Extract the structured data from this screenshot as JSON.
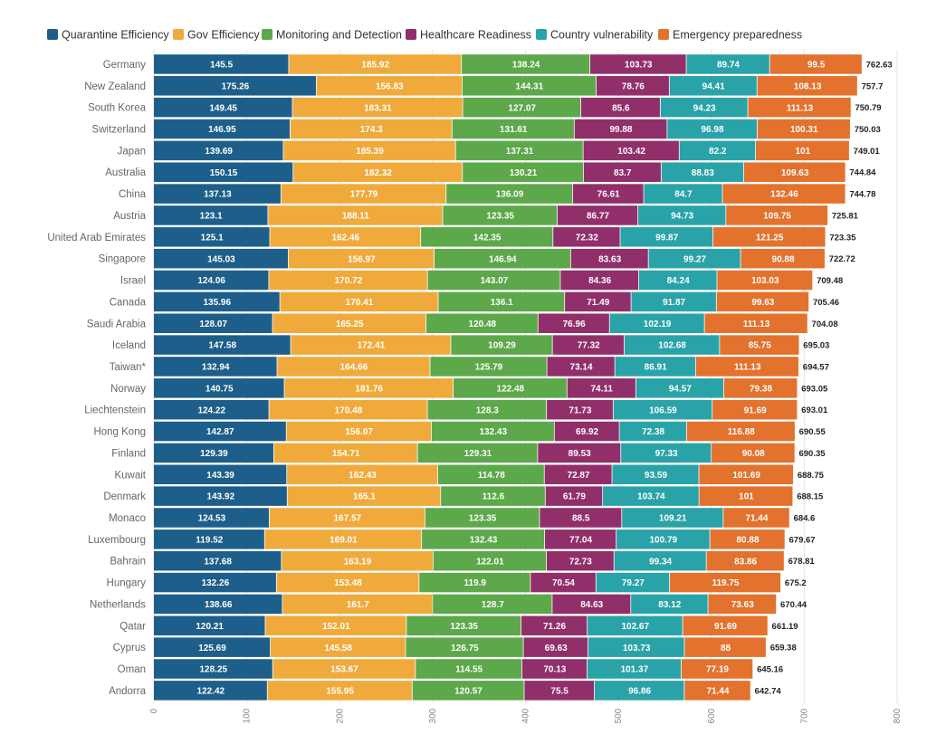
{
  "chart_data": {
    "type": "bar",
    "orientation": "horizontal",
    "stacked": true,
    "legend_position": "top",
    "grid": true,
    "xlim": [
      0,
      800
    ],
    "x_ticks": [
      "0",
      "100",
      "200",
      "300",
      "400",
      "500",
      "600",
      "700",
      "800"
    ],
    "categories": [
      "Germany",
      "New Zealand",
      "South Korea",
      "Switzerland",
      "Japan",
      "Australia",
      "China",
      "Austria",
      "United Arab Emirates",
      "Singapore",
      "Israel",
      "Canada",
      "Saudi Arabia",
      "Iceland",
      "Taiwan*",
      "Norway",
      "Liechtenstein",
      "Hong Kong",
      "Finland",
      "Kuwait",
      "Denmark",
      "Monaco",
      "Luxembourg",
      "Bahrain",
      "Hungary",
      "Netherlands",
      "Qatar",
      "Cyprus",
      "Oman",
      "Andorra"
    ],
    "series": [
      {
        "name": "Quarantine Efficiency",
        "color": "#1d5f8a",
        "values": [
          145.5,
          175.26,
          149.45,
          146.95,
          139.69,
          150.15,
          137.13,
          123.1,
          125.1,
          145.03,
          124.06,
          135.96,
          128.07,
          147.58,
          132.94,
          140.75,
          124.22,
          142.87,
          129.39,
          143.39,
          143.92,
          124.53,
          119.52,
          137.68,
          132.26,
          138.66,
          120.21,
          125.69,
          128.25,
          122.42
        ]
      },
      {
        "name": "Gov Efficiency",
        "color": "#f0aa3c",
        "values": [
          185.92,
          156.83,
          183.31,
          174.3,
          185.39,
          182.32,
          177.79,
          188.11,
          162.46,
          156.97,
          170.72,
          170.41,
          165.25,
          172.41,
          164.66,
          181.76,
          170.48,
          156.07,
          154.71,
          162.43,
          165.1,
          167.57,
          169.01,
          163.19,
          153.48,
          161.7,
          152.01,
          145.58,
          153.67,
          155.95
        ]
      },
      {
        "name": "Monitoring and Detection",
        "color": "#5ca84a",
        "values": [
          138.24,
          144.31,
          127.07,
          131.61,
          137.31,
          130.21,
          136.09,
          123.35,
          142.35,
          146.94,
          143.07,
          136.1,
          120.48,
          109.29,
          125.79,
          122.48,
          128.3,
          132.43,
          129.31,
          114.78,
          112.6,
          123.35,
          132.43,
          122.01,
          119.9,
          128.7,
          123.35,
          126.75,
          114.55,
          120.57
        ]
      },
      {
        "name": "Healthcare Readiness",
        "color": "#912f6a",
        "values": [
          103.73,
          78.76,
          85.6,
          99.88,
          103.42,
          83.7,
          76.61,
          86.77,
          72.32,
          83.63,
          84.36,
          71.49,
          76.96,
          77.32,
          73.14,
          74.11,
          71.73,
          69.92,
          89.53,
          72.87,
          61.79,
          88.5,
          77.04,
          72.73,
          70.54,
          84.63,
          71.26,
          69.63,
          70.13,
          75.5
        ]
      },
      {
        "name": "Country vulnerability",
        "color": "#2aa3a8",
        "values": [
          89.74,
          94.41,
          94.23,
          96.98,
          82.2,
          88.83,
          84.7,
          94.73,
          99.87,
          99.27,
          84.24,
          91.87,
          102.19,
          102.68,
          86.91,
          94.57,
          106.59,
          72.38,
          97.33,
          93.59,
          103.74,
          109.21,
          100.79,
          99.34,
          79.27,
          83.12,
          102.67,
          103.73,
          101.37,
          96.86
        ]
      },
      {
        "name": "Emergency preparedness",
        "color": "#e2722d",
        "values": [
          99.5,
          108.13,
          111.13,
          100.31,
          101,
          109.63,
          132.46,
          109.75,
          121.25,
          90.88,
          103.03,
          99.63,
          111.13,
          85.75,
          111.13,
          79.38,
          91.69,
          116.88,
          90.08,
          101.69,
          101,
          71.44,
          80.88,
          83.86,
          119.75,
          73.63,
          91.69,
          88,
          77.19,
          71.44
        ]
      }
    ],
    "totals": [
      762.63,
      757.7,
      750.79,
      750.03,
      749.01,
      744.84,
      744.78,
      725.81,
      723.35,
      722.72,
      709.48,
      705.46,
      704.08,
      695.03,
      694.57,
      693.05,
      693.01,
      690.55,
      690.35,
      688.75,
      688.15,
      684.6,
      679.67,
      678.81,
      675.2,
      670.44,
      661.19,
      659.38,
      645.16,
      642.74
    ]
  }
}
